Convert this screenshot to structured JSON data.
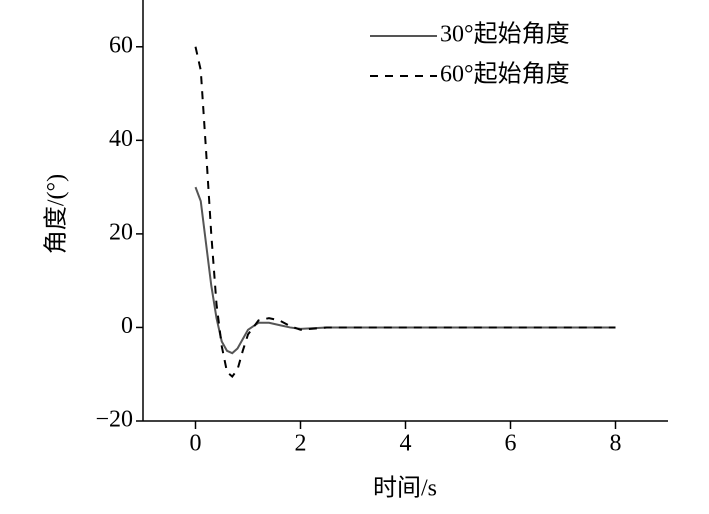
{
  "chart_data": {
    "type": "line",
    "xlabel": "时间/s",
    "ylabel": "角度/(°)",
    "x": [
      0,
      0.1,
      0.2,
      0.3,
      0.4,
      0.5,
      0.6,
      0.7,
      0.8,
      0.9,
      1.0,
      1.2,
      1.4,
      1.6,
      1.8,
      2.0,
      2.5,
      3,
      4,
      5,
      6,
      7,
      8
    ],
    "series": [
      {
        "name": "30°起始角度",
        "color": "#555555",
        "dashed": false,
        "values": [
          30,
          27,
          18,
          9,
          2,
          -3,
          -5,
          -5.5,
          -4.5,
          -2.5,
          -0.5,
          1,
          1,
          0.5,
          0,
          -0.3,
          0,
          0,
          0,
          0,
          0,
          0,
          0
        ]
      },
      {
        "name": "60°起始角度",
        "color": "#000000",
        "dashed": true,
        "values": [
          60,
          55,
          38,
          20,
          5,
          -4,
          -9.5,
          -10.5,
          -9,
          -5,
          -1.5,
          1.5,
          2,
          1.5,
          0.3,
          -0.5,
          0,
          0,
          0,
          0,
          0,
          0,
          0
        ]
      }
    ],
    "xlim": [
      -1,
      9
    ],
    "xticks": [
      0,
      2,
      4,
      6,
      8
    ],
    "ylim": [
      -20,
      70
    ],
    "yticks": [
      {
        "value": -20,
        "label": "−20"
      },
      0,
      20,
      40,
      60
    ],
    "legend": "upper right"
  }
}
